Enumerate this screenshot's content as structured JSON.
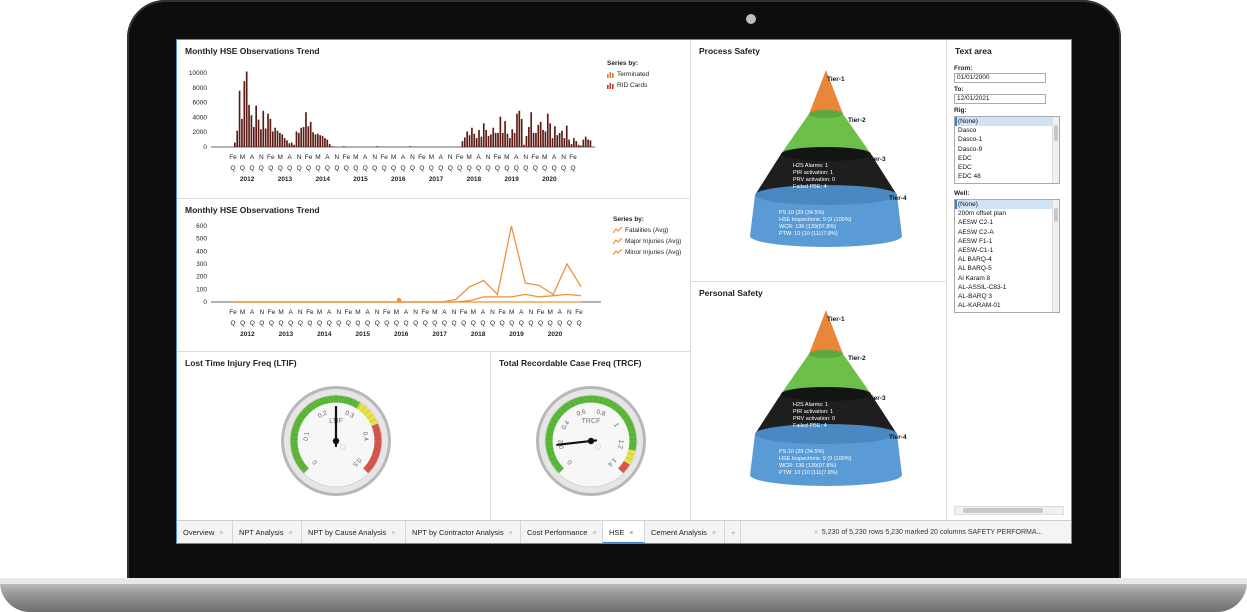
{
  "colors": {
    "bar": "#5b1a12",
    "terminated": "#e07b39",
    "rid": "#c0392b",
    "line": "#f0913a",
    "tier1": "#e8863a",
    "tier2": "#6cc04a",
    "tier3": "#1e1e1e",
    "tier4": "#5b9bd5",
    "accent": "#3b7fd1"
  },
  "obs_trend": {
    "title": "Monthly HSE Observations Trend",
    "legend_header": "Series by:",
    "legend": [
      {
        "label": "Terminated",
        "icon": "bar-chart-icon"
      },
      {
        "label": "RID Cards",
        "icon": "bar-chart-icon"
      }
    ],
    "yticks": [
      "10000",
      "8000",
      "6000",
      "4000",
      "2000",
      "0"
    ],
    "xrow1": [
      "Fe",
      "M",
      "A",
      "N",
      "Fe",
      "M",
      "A",
      "N",
      "Fe",
      "M",
      "A",
      "N",
      "Fe",
      "M",
      "A",
      "N",
      "Fe",
      "M",
      "A",
      "N",
      "Fe",
      "M",
      "A",
      "N",
      "Fe",
      "M",
      "A",
      "N",
      "Fe",
      "M",
      "A",
      "N",
      "Fe",
      "M",
      "A",
      "N",
      "Fe"
    ],
    "xrow2": [
      "Q",
      "Q",
      "Q",
      "Q",
      "Q",
      "Q",
      "Q",
      "Q",
      "Q",
      "Q",
      "Q",
      "Q",
      "Q",
      "Q",
      "Q",
      "Q",
      "Q",
      "Q",
      "Q",
      "Q",
      "Q",
      "Q",
      "Q",
      "Q",
      "Q",
      "Q",
      "Q",
      "Q",
      "Q",
      "Q",
      "Q",
      "Q",
      "Q",
      "Q",
      "Q",
      "Q",
      "Q"
    ],
    "years": [
      "2012",
      "2013",
      "2014",
      "2015",
      "2016",
      "2017",
      "2018",
      "2019",
      "2020"
    ]
  },
  "inj_trend": {
    "title": "Monthly HSE Observations Trend",
    "legend_header": "Series by:",
    "legend": [
      {
        "label": "Fatalities (Avg)",
        "icon": "line-chart-icon"
      },
      {
        "label": "Major Injuries (Avg)",
        "icon": "line-chart-icon"
      },
      {
        "label": "Minor Injuries (Avg)",
        "icon": "line-chart-icon"
      }
    ],
    "yticks": [
      "600",
      "500",
      "400",
      "300",
      "200",
      "100",
      "0"
    ],
    "xrow1": [
      "Fe",
      "M",
      "A",
      "N",
      "Fe",
      "M",
      "A",
      "N",
      "Fe",
      "M",
      "A",
      "N",
      "Fe",
      "M",
      "A",
      "N",
      "Fe",
      "M",
      "A",
      "N",
      "Fe",
      "M",
      "A",
      "N",
      "Fe",
      "M",
      "A",
      "N",
      "Fe",
      "M",
      "A",
      "N",
      "Fe",
      "M",
      "A",
      "N",
      "Fe"
    ],
    "xrow2": [
      "Q",
      "Q",
      "Q",
      "Q",
      "Q",
      "Q",
      "Q",
      "Q",
      "Q",
      "Q",
      "Q",
      "Q",
      "Q",
      "Q",
      "Q",
      "Q",
      "Q",
      "Q",
      "Q",
      "Q",
      "Q",
      "Q",
      "Q",
      "Q",
      "Q",
      "Q",
      "Q",
      "Q",
      "Q",
      "Q",
      "Q",
      "Q",
      "Q",
      "Q",
      "Q",
      "Q",
      "Q"
    ],
    "years": [
      "2012",
      "2013",
      "2014",
      "2015",
      "2016",
      "2017",
      "2018",
      "2019",
      "2020"
    ]
  },
  "chart_data": [
    {
      "type": "bar",
      "title": "Monthly HSE Observations Trend",
      "legend": [
        "Terminated",
        "RID Cards"
      ],
      "ylim": [
        0,
        10000
      ],
      "yticks": [
        0,
        2000,
        4000,
        6000,
        8000,
        10000
      ],
      "values": [
        600,
        2200,
        7600,
        3800,
        8900,
        10200,
        5700,
        4300,
        2700,
        5600,
        3700,
        2400,
        4900,
        2500,
        4500,
        3800,
        2100,
        2600,
        2200,
        1900,
        1700,
        1200,
        900,
        500,
        600,
        300,
        2100,
        1900,
        2600,
        2700,
        4700,
        2800,
        3400,
        2000,
        1700,
        1800,
        1600,
        1500,
        1200,
        1000,
        400,
        100,
        0,
        0,
        0,
        0,
        100,
        0,
        0,
        0,
        0,
        0,
        0,
        0,
        0,
        0,
        0,
        0,
        0,
        0,
        100,
        0,
        0,
        0,
        0,
        0,
        0,
        0,
        0,
        0,
        0,
        0,
        0,
        0,
        100,
        0,
        0,
        0,
        0,
        0,
        0,
        0,
        0,
        0,
        0,
        0,
        0,
        0,
        0,
        0,
        0,
        0,
        0,
        0,
        0,
        0,
        800,
        1300,
        2100,
        1600,
        2600,
        1800,
        1200,
        2300,
        1400,
        3200,
        2300,
        1500,
        1700,
        2600,
        1900,
        1900,
        4100,
        1900,
        3500,
        1800,
        1200,
        2400,
        1900,
        4500,
        4900,
        3800,
        300,
        1500,
        2700,
        4700,
        1900,
        1900,
        3000,
        3400,
        2300,
        2100,
        4500,
        3200,
        1200,
        2800,
        1600,
        1900,
        2200,
        1200,
        2900,
        1000,
        400,
        1200,
        800,
        300,
        200,
        1000,
        1400,
        1000,
        900
      ],
      "tick_labels": [
        "Fe",
        "M",
        "A",
        "N",
        "Fe",
        "M",
        "A",
        "N",
        "Fe",
        "M",
        "A",
        "N",
        "Fe",
        "M",
        "A",
        "N",
        "Fe",
        "M",
        "A",
        "N",
        "Fe",
        "M",
        "A",
        "N",
        "Fe",
        "M",
        "A",
        "N",
        "Fe",
        "M",
        "A",
        "N",
        "Fe",
        "M",
        "A",
        "N",
        "Fe"
      ],
      "year_labels": [
        "2012",
        "2013",
        "2014",
        "2015",
        "2016",
        "2017",
        "2018",
        "2019",
        "2020"
      ],
      "grid": false,
      "legend_position": "right"
    },
    {
      "type": "line",
      "title": "Monthly HSE Observations Trend",
      "ylim": [
        0,
        600
      ],
      "yticks": [
        0,
        100,
        200,
        300,
        400,
        500,
        600
      ],
      "tick_labels": [
        "Fe",
        "M",
        "A",
        "N",
        "Fe",
        "M",
        "A",
        "N",
        "Fe",
        "M",
        "A",
        "N",
        "Fe",
        "M",
        "A",
        "N",
        "Fe",
        "M",
        "A",
        "N",
        "Fe",
        "M",
        "A",
        "N",
        "Fe",
        "M",
        "A",
        "N",
        "Fe",
        "M",
        "A",
        "N",
        "Fe",
        "M",
        "A",
        "N",
        "Fe"
      ],
      "year_labels": [
        "2012",
        "2013",
        "2014",
        "2015",
        "2016",
        "2017",
        "2018",
        "2019",
        "2020"
      ],
      "x": [
        0,
        4,
        8,
        12,
        16,
        20,
        24,
        28,
        32,
        36,
        40,
        44,
        48,
        52,
        56,
        60,
        64,
        68,
        72,
        76,
        80,
        84,
        88,
        92,
        96,
        100
      ],
      "series": [
        {
          "name": "Fatalities (Avg)",
          "values": [
            0,
            0,
            0,
            0,
            0,
            0,
            0,
            0,
            0,
            0,
            0,
            0,
            0,
            0,
            0,
            0,
            0,
            0,
            0,
            0,
            0,
            0,
            0,
            0,
            0,
            0
          ]
        },
        {
          "name": "Major Injuries (Avg)",
          "values": [
            0,
            0,
            0,
            0,
            0,
            0,
            0,
            0,
            0,
            0,
            0,
            0,
            0,
            0,
            0,
            0,
            0,
            10,
            40,
            40,
            40,
            60,
            40,
            50,
            60,
            50
          ]
        },
        {
          "name": "Minor Injuries (Avg)",
          "values": [
            0,
            0,
            0,
            0,
            0,
            0,
            0,
            0,
            0,
            0,
            0,
            0,
            0,
            0,
            0,
            0,
            20,
            120,
            170,
            60,
            600,
            150,
            130,
            60,
            300,
            120
          ]
        }
      ],
      "grid": false,
      "legend_position": "right"
    }
  ],
  "ltif": {
    "title": "Lost Time Injury Freq (LTIF)",
    "unit": "LTIF",
    "ticks": [
      "0",
      "0.1",
      "0.2",
      "0.3",
      "0.4",
      "0.5"
    ],
    "min": 0,
    "max": 0.5,
    "value": 0.25
  },
  "trcf": {
    "title": "Total Recordable Case Freq (TRCF)",
    "unit": "TRCF",
    "ticks": [
      "0",
      "0.2",
      "0.4",
      "0.6",
      "0.8",
      "1",
      "1.2",
      "1.4"
    ],
    "min": 0,
    "max": 1.4,
    "value": 0.2
  },
  "process_safety": {
    "title": "Process Safety",
    "tier_labels": [
      "Tier-1",
      "Tier-2",
      "Tier-3",
      "Tier-4"
    ],
    "tier3_lines": [
      "H2S Alarms: 1",
      "PIR activation: 1",
      "PRV activation: 0",
      "Failed PBE: 4"
    ],
    "tier4_lines": [
      "PS:10 (29 (34.5%)",
      "HSE Inspections: 9 (9 (100%)",
      "WCR: 136 (139(97.8%)",
      "PTW: 10 (10 (111(7.8%)"
    ]
  },
  "personal_safety": {
    "title": "Personal Safety",
    "tier_labels": [
      "Tier-1",
      "Tier-2",
      "Tier-3",
      "Tier-4"
    ],
    "tier3_lines": [
      "H2S Alarms: 1",
      "PIR activation: 1",
      "PRV activation: 0",
      "Failed PBE: 4"
    ],
    "tier4_lines": [
      "PS:10 (29 (34.5%)",
      "HSE Inspections: 9 (9 (100%)",
      "WCR: 136 (139(97.8%)",
      "PTW: 10 (10 (111(7.8%)"
    ]
  },
  "text_area": {
    "title": "Text area",
    "from_label": "From:",
    "from_value": "01/01/2000",
    "to_label": "To:",
    "to_value": "12/01/2021",
    "rig_label": "Rig:",
    "rig_options": [
      "(None)",
      "Dasco",
      "Dasco-1",
      "Dasco-9",
      "EDC",
      "EDC",
      "EDC 48"
    ],
    "well_label": "Well:",
    "well_options": [
      "(None)",
      "200m offset plan",
      "AESW C2-1",
      "AESW C2-A",
      "AESW F1-1",
      "AESW-C1-1",
      "AL BARQ-4",
      "AL BARQ-5",
      "Al Karam 8",
      "AL-ASSIL-C83-1",
      "AL-BARQ 3",
      "AL-KARAM-01"
    ]
  },
  "tabs": [
    {
      "label": "Overview"
    },
    {
      "label": "NPT Analysis"
    },
    {
      "label": "NPT by Cause Analysis"
    },
    {
      "label": "NPT by Contractor Analysis"
    },
    {
      "label": "Cost Performance"
    },
    {
      "label": "HSE"
    },
    {
      "label": "Cement Analysis"
    }
  ],
  "tab_add": "+",
  "tab_close": "×",
  "status": {
    "expand": "»",
    "text": "5,230 of 5,230 rows   5,230 marked   20 columns   SAFETY PERFORMA..."
  }
}
